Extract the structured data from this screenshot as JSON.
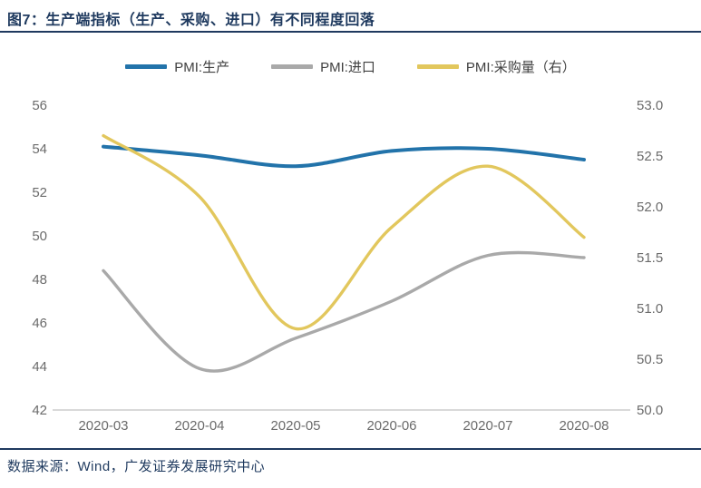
{
  "header": {
    "title": "图7：生产端指标（生产、采购、进口）有不同程度回落"
  },
  "footer": {
    "source": "数据来源：Wind，广发证券发展研究中心"
  },
  "colors": {
    "navy": "#1F3A5F",
    "blue_series": "#2273AA",
    "gray_series": "#A9A9A9",
    "yellow_series": "#E2C75D",
    "tick_text": "#6B6B6B",
    "axis_line": "#D9D9D9"
  },
  "chart_data": {
    "type": "line",
    "smooth": true,
    "grid": false,
    "legend_position": "top",
    "categories": [
      "2020-03",
      "2020-04",
      "2020-05",
      "2020-06",
      "2020-07",
      "2020-08"
    ],
    "series": [
      {
        "id": "pmi-production",
        "name": "PMI:生产",
        "axis": "left",
        "color": "#2273AA",
        "stroke_width": 4,
        "values": [
          54.1,
          53.7,
          53.2,
          53.9,
          54.0,
          53.5
        ]
      },
      {
        "id": "pmi-imports",
        "name": "PMI:进口",
        "axis": "left",
        "color": "#A9A9A9",
        "stroke_width": 3.4,
        "values": [
          48.4,
          43.9,
          45.3,
          47.0,
          49.1,
          49.0
        ]
      },
      {
        "id": "pmi-purchasing-volume",
        "name": "PMI:采购量（右）",
        "axis": "right",
        "color": "#E2C75D",
        "stroke_width": 3.4,
        "values": [
          52.7,
          52.1,
          50.8,
          51.8,
          52.4,
          51.7
        ]
      }
    ],
    "left_axis": {
      "min": 42,
      "max": 56,
      "step": 2,
      "ticks": [
        "56",
        "54",
        "52",
        "50",
        "48",
        "46",
        "44",
        "42"
      ]
    },
    "right_axis": {
      "min": 50,
      "max": 53,
      "step": 0.5,
      "ticks": [
        "53.0",
        "52.5",
        "52.0",
        "51.5",
        "51.0",
        "50.5",
        "50.0"
      ]
    }
  }
}
